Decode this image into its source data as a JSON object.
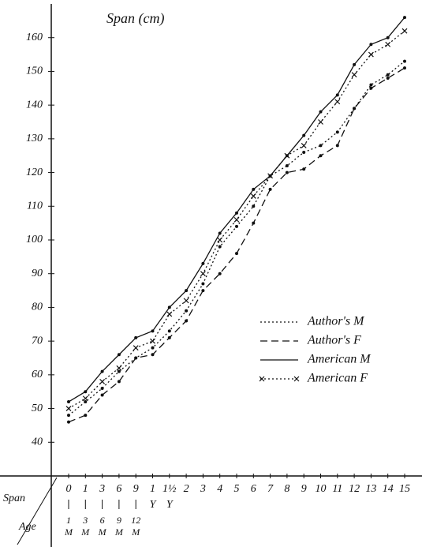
{
  "chart_data": {
    "type": "line",
    "title": "Span (cm)",
    "x_axis_label": "Span",
    "age_axis_label": "Age",
    "categories": [
      "0",
      "1",
      "3",
      "6",
      "9",
      "1",
      "1½",
      "2",
      "3",
      "4",
      "5",
      "6",
      "7",
      "8",
      "9",
      "10",
      "11",
      "12",
      "13",
      "14",
      "15"
    ],
    "category_units": [
      null,
      null,
      null,
      null,
      null,
      "Y",
      "Y",
      null,
      null,
      null,
      null,
      null,
      null,
      null,
      null,
      null,
      null,
      null,
      null,
      null,
      null
    ],
    "ages": [
      "1",
      "3",
      "6",
      "9",
      "12",
      null,
      null,
      null,
      null,
      null,
      null,
      null,
      null,
      null,
      null,
      null,
      null,
      null,
      null,
      null,
      null
    ],
    "age_units": [
      "M",
      "M",
      "M",
      "M",
      "M",
      null,
      null,
      null,
      null,
      null,
      null,
      null,
      null,
      null,
      null,
      null,
      null,
      null,
      null,
      null,
      null
    ],
    "ylim": [
      30,
      170
    ],
    "yticks": [
      40,
      50,
      60,
      70,
      80,
      90,
      100,
      110,
      120,
      130,
      140,
      150,
      160
    ],
    "series": [
      {
        "name": "Author's M",
        "color": "#111",
        "dash": "dotted",
        "marker": "dot",
        "values": [
          48,
          52,
          56,
          61,
          65,
          68,
          73,
          79,
          87,
          98,
          104,
          110,
          119,
          122,
          126,
          128,
          132,
          139,
          146,
          149,
          153
        ]
      },
      {
        "name": "Author's F",
        "color": "#111",
        "dash": "dashed",
        "marker": "dot",
        "values": [
          46,
          48,
          54,
          58,
          65,
          66,
          71,
          76,
          85,
          90,
          96,
          105,
          115,
          120,
          121,
          125,
          128,
          139,
          145,
          148,
          151
        ]
      },
      {
        "name": "American M",
        "color": "#111",
        "dash": "solid",
        "marker": "dot",
        "values": [
          52,
          55,
          61,
          66,
          71,
          73,
          80,
          85,
          93,
          102,
          108,
          115,
          119,
          125,
          131,
          138,
          143,
          152,
          158,
          160,
          166
        ]
      },
      {
        "name": "American F",
        "color": "#111",
        "dash": "dotted",
        "marker": "x",
        "values": [
          50,
          53,
          58,
          62,
          68,
          70,
          78,
          82,
          90,
          100,
          106,
          113,
          119,
          125,
          128,
          135,
          141,
          149,
          155,
          158,
          162
        ]
      }
    ]
  }
}
